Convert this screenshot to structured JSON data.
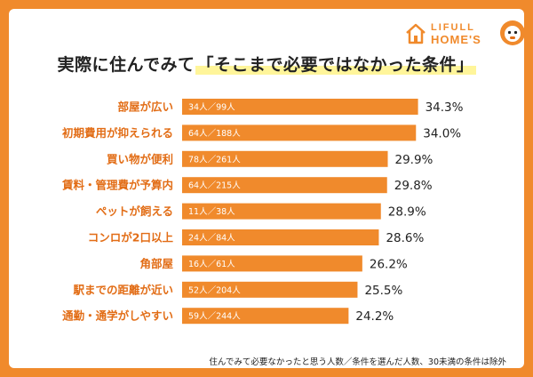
{
  "title": {
    "prefix": "実際に住んでみて",
    "highlight": "「そこまで必要ではなかった条件」"
  },
  "logo": {
    "line1": "LIFULL",
    "line2": "HOME'S",
    "icon": "house-icon",
    "mascot": "mascot-icon"
  },
  "colors": {
    "background": "#f08a2c",
    "bar": "#f08a2c",
    "category_text": "#e26d16",
    "highlight": "#fff59a"
  },
  "chart_data": {
    "type": "bar",
    "orientation": "horizontal",
    "categories": [
      "部屋が広い",
      "初期費用が抑えられる",
      "買い物が便利",
      "賃料・管理費が予算内",
      "ペットが飼える",
      "コンロが2口以上",
      "角部屋",
      "駅までの距離が近い",
      "通勤・通学がしやすい"
    ],
    "values": [
      34.3,
      34.0,
      29.9,
      29.8,
      28.9,
      28.6,
      26.2,
      25.5,
      24.2
    ],
    "value_labels": [
      "34.3%",
      "34.0%",
      "29.9%",
      "29.8%",
      "28.9%",
      "28.6%",
      "26.2%",
      "25.5%",
      "24.2%"
    ],
    "bar_labels": [
      "34人／99人",
      "64人／188人",
      "78人／261人",
      "64人／215人",
      "11人／38人",
      "24人／84人",
      "16人／61人",
      "52人／204人",
      "59人／244人"
    ],
    "xlim": [
      0,
      35
    ],
    "grid": false,
    "legend": "none"
  },
  "footnote": "住んでみて必要なかったと思う人数／条件を選んだ人数、30未満の条件は除外"
}
